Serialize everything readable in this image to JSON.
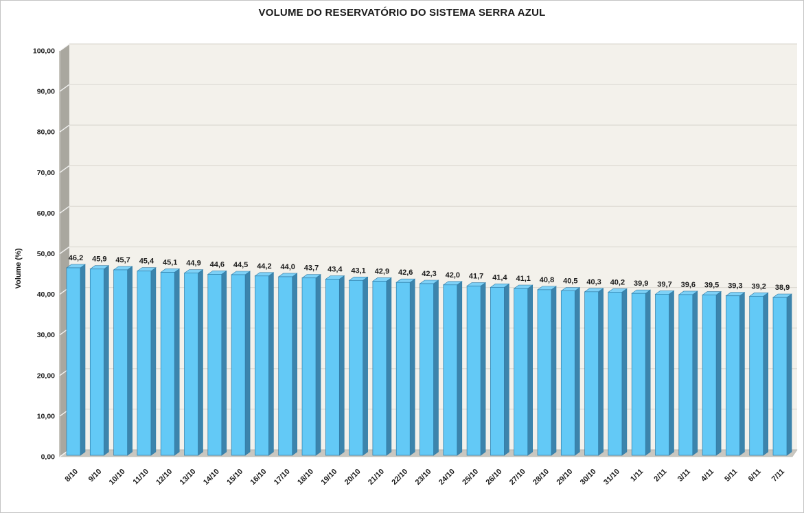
{
  "chart_data": {
    "type": "bar",
    "style": "3d-column",
    "title": "VOLUME DO RESERVATÓRIO DO SISTEMA SERRA AZUL",
    "xlabel": "",
    "ylabel": "Volume (%)",
    "ylim": [
      0,
      100
    ],
    "ytick_step": 10,
    "ytick_labels": [
      "0,00",
      "10,00",
      "20,00",
      "30,00",
      "40,00",
      "50,00",
      "60,00",
      "70,00",
      "80,00",
      "90,00",
      "100,00"
    ],
    "grid": true,
    "legend": "none",
    "categories": [
      "8/10",
      "9/10",
      "10/10",
      "11/10",
      "12/10",
      "13/10",
      "14/10",
      "15/10",
      "16/10",
      "17/10",
      "18/10",
      "19/10",
      "20/10",
      "21/10",
      "22/10",
      "23/10",
      "24/10",
      "25/10",
      "26/10",
      "27/10",
      "28/10",
      "29/10",
      "30/10",
      "31/10",
      "1/11",
      "2/11",
      "3/11",
      "4/11",
      "5/11",
      "6/11",
      "7/11"
    ],
    "values": [
      46.2,
      45.9,
      45.7,
      45.4,
      45.1,
      44.9,
      44.6,
      44.5,
      44.2,
      44.0,
      43.7,
      43.4,
      43.1,
      42.9,
      42.6,
      42.3,
      42.0,
      41.7,
      41.4,
      41.1,
      40.8,
      40.5,
      40.3,
      40.2,
      39.9,
      39.7,
      39.6,
      39.5,
      39.3,
      39.2,
      38.9
    ],
    "value_labels": [
      "46,2",
      "45,9",
      "45,7",
      "45,4",
      "45,1",
      "44,9",
      "44,6",
      "44,5",
      "44,2",
      "44,0",
      "43,7",
      "43,4",
      "43,1",
      "42,9",
      "42,6",
      "42,3",
      "42,0",
      "41,7",
      "41,4",
      "41,1",
      "40,8",
      "40,5",
      "40,3",
      "40,2",
      "39,9",
      "39,7",
      "39,6",
      "39,5",
      "39,3",
      "39,2",
      "38,9"
    ],
    "colors": {
      "bar_front": "#63C9F6",
      "bar_side": "#3C84AC",
      "bar_top": "#7ED1F7",
      "bar_edge": "#2E7BA6",
      "plot_bg": "#F3F1EB",
      "gridline": "#DEDBD4",
      "wall_side": "#A9A79F",
      "wall_side_highlight": "#C6C4BD",
      "floor": "#C9C7C0",
      "wall_edge": "#B5B3AC",
      "text": "#1A1A1A"
    }
  }
}
